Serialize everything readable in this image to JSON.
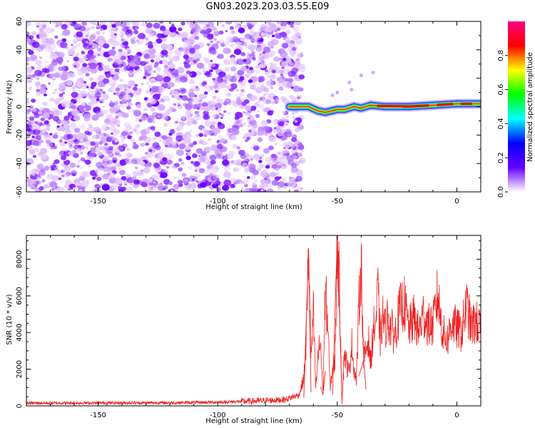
{
  "title": "GN03.2023.203.03.55.E09",
  "chart_data": [
    {
      "type": "heatmap",
      "xlabel": "Height of straight line (km)",
      "ylabel": "Frequency (Hz)",
      "xlim": [
        -180,
        10
      ],
      "ylim": [
        -60,
        60
      ],
      "x_ticks": [
        -150,
        -100,
        -50,
        0
      ],
      "y_ticks": [
        -60,
        -40,
        -20,
        0,
        20,
        40,
        60
      ],
      "noise_region_x": [
        -180,
        -67
      ],
      "signal_band": [
        {
          "x": -70,
          "f": 0
        },
        {
          "x": -66,
          "f": 0
        },
        {
          "x": -62,
          "f": 0
        },
        {
          "x": -58,
          "f": -3
        },
        {
          "x": -55,
          "f": -4
        },
        {
          "x": -50,
          "f": -2
        },
        {
          "x": -47,
          "f": -2
        },
        {
          "x": -43,
          "f": 0
        },
        {
          "x": -40,
          "f": -1
        },
        {
          "x": -36,
          "f": 1
        },
        {
          "x": -30,
          "f": 0
        },
        {
          "x": -20,
          "f": 0
        },
        {
          "x": -10,
          "f": 1
        },
        {
          "x": 0,
          "f": 2
        },
        {
          "x": 10,
          "f": 2
        }
      ],
      "colorbar": {
        "label": "Normalized spectral amplitude",
        "range": [
          0,
          1
        ],
        "ticks": [
          "0.0",
          "0.2",
          "0.4",
          "0.6",
          "0.8"
        ],
        "colormap": [
          "#ffffff",
          "#6600ff",
          "#0000ff",
          "#00ffff",
          "#00ff00",
          "#ffff00",
          "#ff0000",
          "#ff0080"
        ]
      },
      "scatter_points": [
        {
          "x": -40,
          "f": 22
        },
        {
          "x": -45,
          "f": 17
        },
        {
          "x": -35,
          "f": 24
        },
        {
          "x": -50,
          "f": 10
        },
        {
          "x": -52,
          "f": 8
        },
        {
          "x": -44,
          "f": 12
        }
      ]
    },
    {
      "type": "line",
      "xlabel": "Height of straight line (km)",
      "ylabel": "SNR (10 * v/v)",
      "xlim": [
        -180,
        10
      ],
      "ylim": [
        0,
        9300
      ],
      "x_ticks": [
        -150,
        -100,
        -50,
        0
      ],
      "y_ticks": [
        0,
        2000,
        4000,
        6000,
        8000
      ],
      "color": "#ee2222",
      "series": [
        {
          "x": [
            -180,
            -150,
            -120,
            -100,
            -85,
            -72,
            -66,
            -64,
            -63,
            -62,
            -61,
            -60,
            -59,
            -58,
            -57,
            -56,
            -55,
            -54,
            -53,
            -52,
            -51,
            -50,
            -49,
            -48,
            -47,
            -46,
            -45,
            -44,
            -43,
            -42,
            -41,
            -40,
            -39,
            -38,
            -37,
            -36,
            -35,
            -34,
            -33,
            -32,
            -31,
            -30,
            -29,
            -28,
            -26,
            -24,
            -22,
            -20,
            -18,
            -16,
            -14,
            -12,
            -10,
            -8,
            -6,
            -4,
            -2,
            0,
            2,
            4,
            6,
            8,
            10
          ],
          "y": [
            150,
            160,
            170,
            200,
            260,
            340,
            600,
            1500,
            3500,
            8600,
            2500,
            5000,
            900,
            2800,
            3500,
            600,
            6300,
            4500,
            1000,
            2000,
            2400,
            9300,
            6000,
            300,
            3000,
            2200,
            1800,
            3500,
            2000,
            1400,
            5400,
            8000,
            2500,
            3000,
            3700,
            2200,
            4200,
            4400,
            6300,
            3500,
            4900,
            4200,
            4800,
            4400,
            3800,
            5200,
            5600,
            4200,
            4800,
            4000,
            5000,
            4400,
            4400,
            6100,
            4000,
            3600,
            4600,
            4200,
            4000,
            5500,
            4300,
            4600,
            4100
          ]
        }
      ]
    }
  ]
}
